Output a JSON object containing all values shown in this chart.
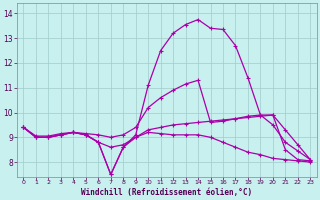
{
  "title": "",
  "xlabel": "Windchill (Refroidissement éolien,°C)",
  "ylabel": "",
  "background_color": "#c8f0ee",
  "grid_color": "#a0cccc",
  "line_color": "#aa00aa",
  "xlim": [
    -0.5,
    23.5
  ],
  "ylim": [
    7.4,
    14.4
  ],
  "xticks": [
    0,
    1,
    2,
    3,
    4,
    5,
    6,
    7,
    8,
    9,
    10,
    11,
    12,
    13,
    14,
    15,
    16,
    17,
    18,
    19,
    20,
    21,
    22,
    23
  ],
  "yticks": [
    8,
    9,
    10,
    11,
    12,
    13,
    14
  ],
  "line1_y": [
    9.4,
    9.0,
    9.0,
    9.1,
    9.2,
    9.1,
    8.8,
    7.5,
    8.6,
    9.1,
    11.1,
    12.5,
    13.2,
    13.55,
    13.75,
    13.4,
    13.35,
    12.7,
    11.4,
    9.9,
    9.9,
    8.5,
    8.1,
    8.05
  ],
  "line2_y": [
    9.4,
    9.05,
    9.05,
    9.15,
    9.2,
    9.15,
    9.1,
    9.0,
    9.1,
    9.4,
    10.2,
    10.6,
    10.9,
    11.15,
    11.3,
    9.6,
    9.65,
    9.75,
    9.85,
    9.9,
    9.5,
    8.8,
    8.45,
    8.1
  ],
  "line3_y": [
    9.4,
    9.0,
    9.0,
    9.1,
    9.2,
    9.1,
    8.8,
    8.6,
    8.7,
    9.0,
    9.3,
    9.4,
    9.5,
    9.55,
    9.6,
    9.65,
    9.7,
    9.75,
    9.8,
    9.85,
    9.9,
    9.3,
    8.7,
    8.1
  ],
  "line4_y": [
    9.4,
    9.0,
    9.0,
    9.1,
    9.2,
    9.1,
    8.8,
    7.5,
    8.6,
    9.0,
    9.2,
    9.15,
    9.1,
    9.1,
    9.1,
    9.0,
    8.8,
    8.6,
    8.4,
    8.3,
    8.15,
    8.1,
    8.05,
    8.0
  ]
}
